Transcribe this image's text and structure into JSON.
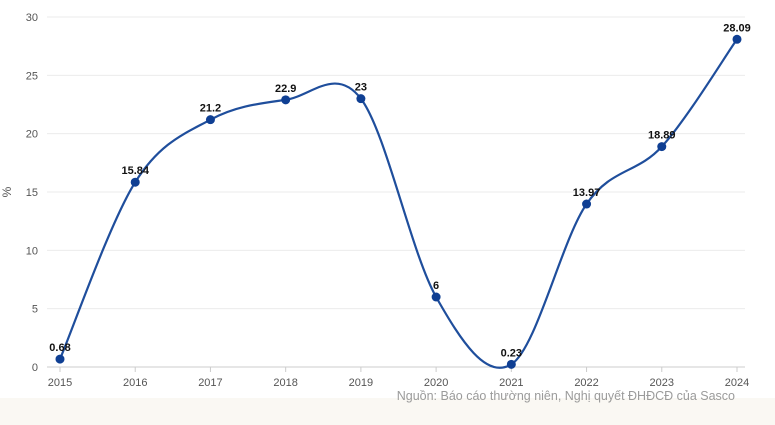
{
  "chart_data": {
    "type": "line",
    "title": "",
    "xlabel": "",
    "ylabel": "%",
    "x": [
      "2015",
      "2016",
      "2017",
      "2018",
      "2019",
      "2020",
      "2021",
      "2022",
      "2023",
      "2024"
    ],
    "series": [
      {
        "values": [
          0.68,
          15.84,
          21.2,
          22.9,
          23,
          6,
          0.23,
          13.97,
          18.89,
          28.09
        ]
      }
    ],
    "data_labels": [
      "0.68",
      "15.84",
      "21.2",
      "22.9",
      "23",
      "6",
      "0.23",
      "13.97",
      "18.89",
      "28.09"
    ],
    "ylim": [
      0,
      30
    ],
    "yticks": [
      "0",
      "5",
      "10",
      "15",
      "20",
      "25",
      "30"
    ],
    "grid": "horizontal",
    "legend": "none",
    "line_color": "#1f4e9c",
    "point_color": "#0f3f93",
    "source": "Nguồn: Báo cáo thường niên, Nghị quyết ĐHĐCĐ của Sasco"
  }
}
